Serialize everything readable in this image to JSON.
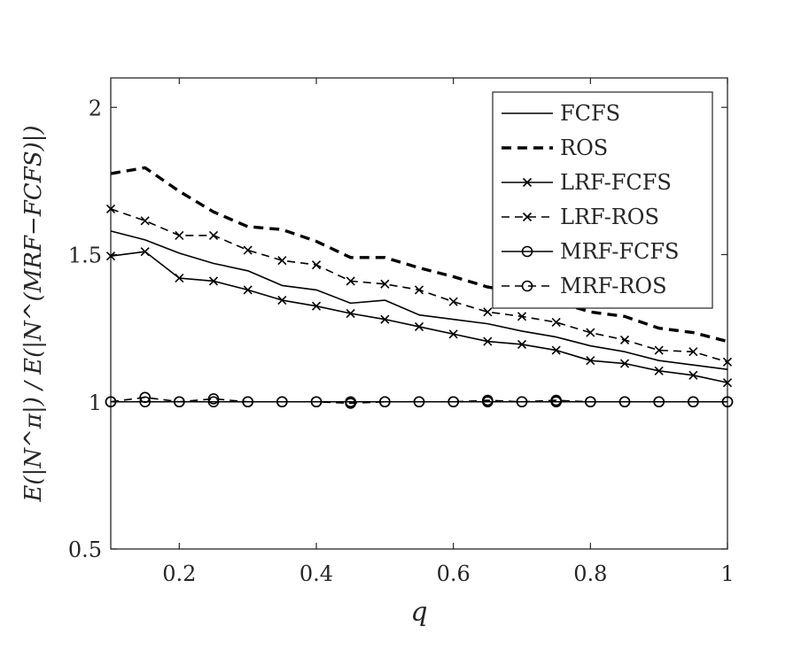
{
  "chart_data": {
    "type": "line",
    "xlabel": "q",
    "ylabel": "E(|N^π|) / E(|N^(MRF−FCFS)|)",
    "xlim": [
      0.1,
      1.0
    ],
    "ylim": [
      0.5,
      2.1
    ],
    "xticks": [
      0.2,
      0.4,
      0.6,
      0.8,
      1
    ],
    "xtick_labels": [
      "0.2",
      "0.4",
      "0.6",
      "0.8",
      "1"
    ],
    "yticks": [
      0.5,
      1,
      1.5,
      2
    ],
    "ytick_labels": [
      "0.5",
      "1",
      "1.5",
      "2"
    ],
    "grid": false,
    "legend_position": "top-right",
    "x": [
      0.1,
      0.15,
      0.2,
      0.25,
      0.3,
      0.35,
      0.4,
      0.45,
      0.5,
      0.55,
      0.6,
      0.65,
      0.7,
      0.75,
      0.8,
      0.85,
      0.9,
      0.95,
      1.0
    ],
    "series": [
      {
        "name": "FCFS",
        "line_style": "solid",
        "marker": "none",
        "color": "#000000",
        "values": [
          1.58,
          1.55,
          1.505,
          1.47,
          1.445,
          1.395,
          1.38,
          1.335,
          1.345,
          1.295,
          1.28,
          1.265,
          1.24,
          1.22,
          1.19,
          1.17,
          1.14,
          1.125,
          1.11
        ]
      },
      {
        "name": "ROS",
        "line_style": "dashed-bold",
        "marker": "none",
        "color": "#000000",
        "values": [
          1.775,
          1.795,
          1.715,
          1.645,
          1.595,
          1.585,
          1.545,
          1.49,
          1.49,
          1.455,
          1.425,
          1.39,
          1.37,
          1.34,
          1.305,
          1.29,
          1.25,
          1.235,
          1.205
        ]
      },
      {
        "name": "LRF-FCFS",
        "line_style": "solid",
        "marker": "x",
        "color": "#000000",
        "values": [
          1.495,
          1.51,
          1.42,
          1.41,
          1.38,
          1.345,
          1.325,
          1.3,
          1.28,
          1.255,
          1.23,
          1.205,
          1.195,
          1.175,
          1.14,
          1.13,
          1.105,
          1.09,
          1.065
        ]
      },
      {
        "name": "LRF-ROS",
        "line_style": "dashed",
        "marker": "x",
        "color": "#000000",
        "values": [
          1.655,
          1.615,
          1.565,
          1.565,
          1.515,
          1.48,
          1.465,
          1.41,
          1.4,
          1.38,
          1.34,
          1.305,
          1.29,
          1.27,
          1.235,
          1.21,
          1.175,
          1.17,
          1.135
        ]
      },
      {
        "name": "MRF-FCFS",
        "line_style": "solid",
        "marker": "o",
        "color": "#000000",
        "values": [
          1,
          1,
          1,
          1,
          1,
          1,
          1,
          1,
          1,
          1,
          1,
          1,
          1,
          1,
          1,
          1,
          1,
          1,
          1
        ]
      },
      {
        "name": "MRF-ROS",
        "line_style": "dashed",
        "marker": "o",
        "color": "#000000",
        "values": [
          1.0,
          1.015,
          1.0,
          1.01,
          1.0,
          1.0,
          1.0,
          0.995,
          1.0,
          1.0,
          1.0,
          1.005,
          1.0,
          1.005,
          1.0,
          1.0,
          1.0,
          1.0,
          1.0
        ]
      }
    ]
  }
}
